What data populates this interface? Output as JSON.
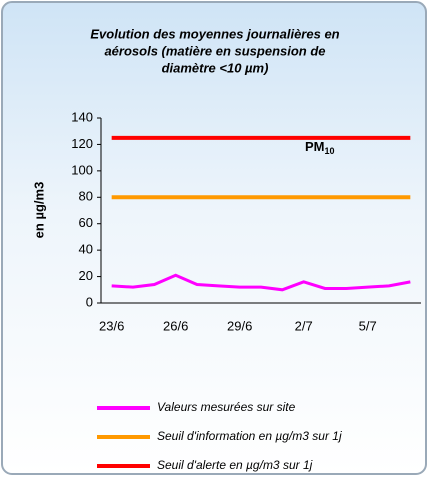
{
  "chart_data": {
    "type": "line",
    "title": [
      "Evolution des moyennes journalières en",
      "aérosols (matière en suspension de",
      "diamètre <10 µm)"
    ],
    "ylabel": "en µg/m3",
    "annotation": {
      "text": "PM",
      "sub": "10"
    },
    "categories": [
      "23/6",
      null,
      null,
      "26/6",
      null,
      null,
      "29/6",
      null,
      null,
      "2/7",
      null,
      null,
      "5/7",
      null,
      null
    ],
    "series": [
      {
        "name": "Valeurs mesurées sur site",
        "color": "#ff00ff",
        "values": [
          13,
          12,
          14,
          21,
          14,
          13,
          12,
          12,
          10,
          16,
          11,
          11,
          12,
          13,
          16
        ]
      },
      {
        "name": "Seuil d'information en µg/m3 sur 1j",
        "color": "#ff9900",
        "values": [
          80,
          80,
          80,
          80,
          80,
          80,
          80,
          80,
          80,
          80,
          80,
          80,
          80,
          80,
          80
        ]
      },
      {
        "name": "Seuil d'alerte en µg/m3 sur 1j",
        "color": "#ff0000",
        "values": [
          125,
          125,
          125,
          125,
          125,
          125,
          125,
          125,
          125,
          125,
          125,
          125,
          125,
          125,
          125
        ]
      }
    ],
    "ylim": [
      0,
      140
    ],
    "yticks": [
      0,
      20,
      40,
      60,
      80,
      100,
      120,
      140
    ],
    "grid": false
  }
}
